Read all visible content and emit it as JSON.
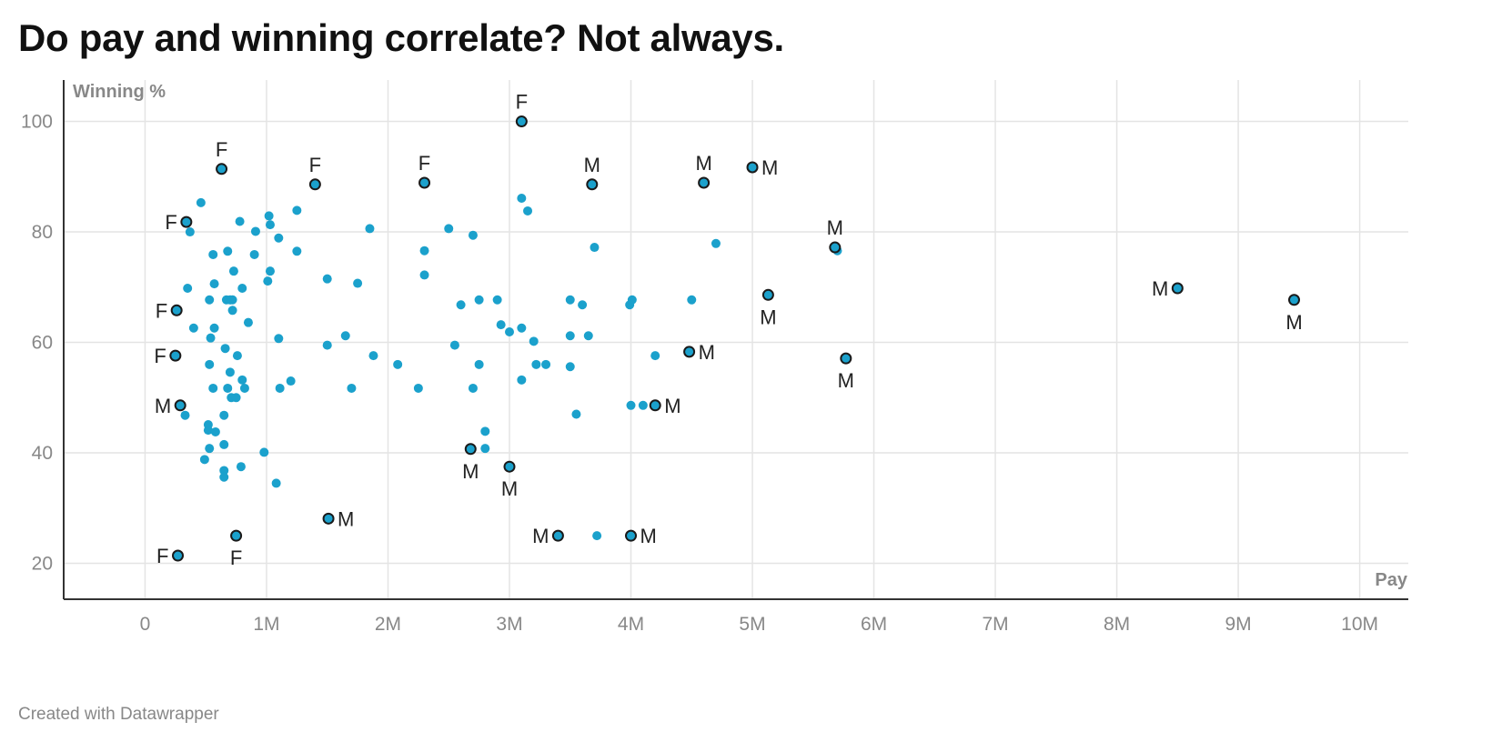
{
  "title": "Do pay and winning correlate? Not always.",
  "credit": "Created with Datawrapper",
  "colors": {
    "dot": "#1ba1cc",
    "outline": "#1a1a1a",
    "grid": "#e4e4e4",
    "axis": "#333333",
    "tick": "#888888"
  },
  "chart_data": {
    "type": "scatter",
    "xlabel": "Pay",
    "ylabel": "Winning %",
    "xlim": [
      -670000,
      10400000
    ],
    "ylim": [
      13.5,
      107.5
    ],
    "grid": true,
    "x_ticks": [
      0,
      1000000,
      2000000,
      3000000,
      4000000,
      5000000,
      6000000,
      7000000,
      8000000,
      9000000,
      10000000
    ],
    "x_tick_labels": [
      "0",
      "1M",
      "2M",
      "3M",
      "4M",
      "5M",
      "6M",
      "7M",
      "8M",
      "9M",
      "10M"
    ],
    "y_ticks": [
      20,
      40,
      60,
      80,
      100
    ],
    "y_tick_labels": [
      "20",
      "40",
      "60",
      "80",
      "100"
    ],
    "labeled_points": [
      {
        "x": 3100000,
        "y": 100,
        "label": "F",
        "pos": "above"
      },
      {
        "x": 630000,
        "y": 91.4,
        "label": "F",
        "pos": "above"
      },
      {
        "x": 1400000,
        "y": 88.6,
        "label": "F",
        "pos": "above"
      },
      {
        "x": 2300000,
        "y": 88.9,
        "label": "F",
        "pos": "above"
      },
      {
        "x": 3680000,
        "y": 88.6,
        "label": "M",
        "pos": "above"
      },
      {
        "x": 4600000,
        "y": 88.9,
        "label": "M",
        "pos": "above"
      },
      {
        "x": 5000000,
        "y": 91.7,
        "label": "M",
        "pos": "right"
      },
      {
        "x": 5680000,
        "y": 77.2,
        "label": "M",
        "pos": "above"
      },
      {
        "x": 340000,
        "y": 81.8,
        "label": "F",
        "pos": "left"
      },
      {
        "x": 260000,
        "y": 65.8,
        "label": "F",
        "pos": "left"
      },
      {
        "x": 250000,
        "y": 57.6,
        "label": "F",
        "pos": "left"
      },
      {
        "x": 290000,
        "y": 48.6,
        "label": "M",
        "pos": "left"
      },
      {
        "x": 270000,
        "y": 21.4,
        "label": "F",
        "pos": "left"
      },
      {
        "x": 750000,
        "y": 25,
        "label": "F",
        "pos": "below"
      },
      {
        "x": 1510000,
        "y": 28.1,
        "label": "M",
        "pos": "right"
      },
      {
        "x": 2680000,
        "y": 40.7,
        "label": "M",
        "pos": "below"
      },
      {
        "x": 3000000,
        "y": 37.5,
        "label": "M",
        "pos": "below"
      },
      {
        "x": 3400000,
        "y": 25,
        "label": "M",
        "pos": "left"
      },
      {
        "x": 4000000,
        "y": 25,
        "label": "M",
        "pos": "right"
      },
      {
        "x": 4200000,
        "y": 48.6,
        "label": "M",
        "pos": "right"
      },
      {
        "x": 4480000,
        "y": 58.3,
        "label": "M",
        "pos": "right"
      },
      {
        "x": 5130000,
        "y": 68.6,
        "label": "M",
        "pos": "below"
      },
      {
        "x": 5770000,
        "y": 57.1,
        "label": "M",
        "pos": "below"
      },
      {
        "x": 8500000,
        "y": 69.8,
        "label": "M",
        "pos": "left"
      },
      {
        "x": 9460000,
        "y": 67.7,
        "label": "M",
        "pos": "below"
      }
    ],
    "points": [
      [
        460000,
        85.3
      ],
      [
        370000,
        80
      ],
      [
        350000,
        69.8
      ],
      [
        400000,
        62.6
      ],
      [
        530000,
        67.7
      ],
      [
        560000,
        75.9
      ],
      [
        570000,
        70.6
      ],
      [
        570000,
        62.6
      ],
      [
        540000,
        60.8
      ],
      [
        530000,
        56
      ],
      [
        560000,
        51.7
      ],
      [
        520000,
        45.1
      ],
      [
        520000,
        44.1
      ],
      [
        490000,
        38.8
      ],
      [
        530000,
        40.8
      ],
      [
        580000,
        43.8
      ],
      [
        650000,
        41.5
      ],
      [
        650000,
        46.8
      ],
      [
        650000,
        36.8
      ],
      [
        650000,
        35.6
      ],
      [
        330000,
        46.8
      ],
      [
        660000,
        58.9
      ],
      [
        670000,
        67.7
      ],
      [
        680000,
        76.5
      ],
      [
        700000,
        67.7
      ],
      [
        720000,
        67.7
      ],
      [
        720000,
        65.8
      ],
      [
        730000,
        72.9
      ],
      [
        780000,
        81.9
      ],
      [
        800000,
        69.8
      ],
      [
        850000,
        63.6
      ],
      [
        760000,
        57.6
      ],
      [
        700000,
        54.6
      ],
      [
        680000,
        51.7
      ],
      [
        710000,
        50
      ],
      [
        750000,
        50
      ],
      [
        800000,
        53.2
      ],
      [
        820000,
        51.7
      ],
      [
        790000,
        37.5
      ],
      [
        900000,
        75.9
      ],
      [
        910000,
        80.1
      ],
      [
        1010000,
        71.1
      ],
      [
        1020000,
        82.9
      ],
      [
        1030000,
        81.3
      ],
      [
        1030000,
        72.9
      ],
      [
        1100000,
        78.9
      ],
      [
        1100000,
        60.7
      ],
      [
        1110000,
        51.7
      ],
      [
        1200000,
        53
      ],
      [
        980000,
        40.1
      ],
      [
        1080000,
        34.5
      ],
      [
        1250000,
        83.9
      ],
      [
        1250000,
        76.5
      ],
      [
        1500000,
        71.5
      ],
      [
        1500000,
        59.5
      ],
      [
        1650000,
        61.2
      ],
      [
        1700000,
        51.7
      ],
      [
        1750000,
        70.7
      ],
      [
        1850000,
        80.6
      ],
      [
        1880000,
        57.6
      ],
      [
        2080000,
        56
      ],
      [
        2250000,
        51.7
      ],
      [
        2300000,
        76.6
      ],
      [
        2300000,
        72.2
      ],
      [
        2500000,
        80.6
      ],
      [
        2600000,
        66.8
      ],
      [
        2550000,
        59.5
      ],
      [
        2700000,
        79.4
      ],
      [
        2750000,
        67.7
      ],
      [
        2750000,
        56
      ],
      [
        2700000,
        51.7
      ],
      [
        2800000,
        43.9
      ],
      [
        2800000,
        40.8
      ],
      [
        2900000,
        67.7
      ],
      [
        2930000,
        63.2
      ],
      [
        3000000,
        61.9
      ],
      [
        3100000,
        62.6
      ],
      [
        3100000,
        53.2
      ],
      [
        3100000,
        86.1
      ],
      [
        3150000,
        83.8
      ],
      [
        3200000,
        60.2
      ],
      [
        3220000,
        56
      ],
      [
        3300000,
        56
      ],
      [
        3500000,
        67.7
      ],
      [
        3500000,
        61.2
      ],
      [
        3500000,
        55.6
      ],
      [
        3550000,
        47
      ],
      [
        3600000,
        66.8
      ],
      [
        3650000,
        61.2
      ],
      [
        3700000,
        77.2
      ],
      [
        3720000,
        25
      ],
      [
        3990000,
        66.8
      ],
      [
        4010000,
        67.7
      ],
      [
        4000000,
        48.6
      ],
      [
        4100000,
        48.6
      ],
      [
        4200000,
        57.6
      ],
      [
        4500000,
        67.7
      ],
      [
        4700000,
        77.9
      ],
      [
        5700000,
        76.6
      ]
    ]
  }
}
